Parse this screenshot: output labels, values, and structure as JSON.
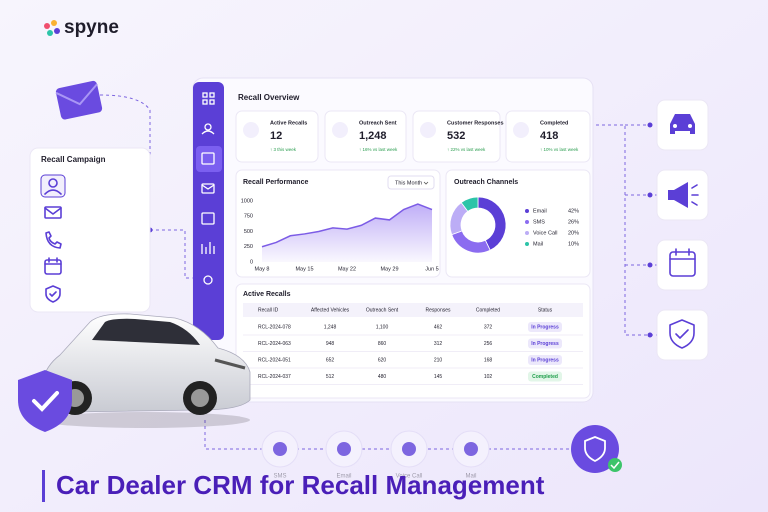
{
  "logo": "spyne",
  "campaign_card": {
    "title": "Recall Campaign"
  },
  "overview": {
    "title": "Recall Overview",
    "stats": [
      {
        "label": "Active Recalls",
        "value": "12",
        "change": "↑ 3 this week"
      },
      {
        "label": "Outreach Sent",
        "value": "1,248",
        "change": "↑ 16% vs last week"
      },
      {
        "label": "Customer Responses",
        "value": "532",
        "change": "↑ 22% vs last week"
      },
      {
        "label": "Completed",
        "value": "418",
        "change": "↑ 10% vs last week"
      }
    ]
  },
  "performance": {
    "type": "line",
    "title": "Recall Performance",
    "filter": "This Month",
    "categories": [
      "May 8",
      null,
      null,
      "May 15",
      null,
      null,
      "May 22",
      null,
      null,
      "May 29",
      null,
      null,
      "Jun 5"
    ],
    "values": [
      250,
      320,
      430,
      460,
      500,
      560,
      540,
      600,
      720,
      690,
      860,
      950,
      860
    ],
    "color": "#7c5ce6",
    "ylim": [
      0,
      1000
    ],
    "yticks": [
      0,
      250,
      500,
      750,
      1000
    ]
  },
  "outreach": {
    "type": "pie",
    "title": "Outreach Channels",
    "categories": [
      "Email",
      "SMS",
      "Voice Call",
      "Mail"
    ],
    "values": [
      42,
      26,
      20,
      10
    ],
    "value_labels": [
      "42%",
      "26%",
      "20%",
      "10%"
    ],
    "colors": [
      "#5b3fd6",
      "#8b6cf0",
      "#bcadf6",
      "#2cc4a8"
    ]
  },
  "table": {
    "title": "Active Recalls",
    "columns": [
      "Recall ID",
      "Affected Vehicles",
      "Outreach Sent",
      "Responses",
      "Completed",
      "Status"
    ],
    "rows": [
      [
        "RCL-2024-078",
        "1,248",
        "1,100",
        "462",
        "372",
        "In Progress"
      ],
      [
        "RCL-2024-063",
        "948",
        "860",
        "312",
        "256",
        "In Progress"
      ],
      [
        "RCL-2024-051",
        "652",
        "620",
        "210",
        "168",
        "In Progress"
      ],
      [
        "RCL-2024-037",
        "512",
        "480",
        "145",
        "102",
        "Completed"
      ]
    ]
  },
  "channels": [
    "SMS",
    "Email",
    "Voice Call",
    "Mail"
  ],
  "headline": "Car Dealer CRM for Recall Management"
}
